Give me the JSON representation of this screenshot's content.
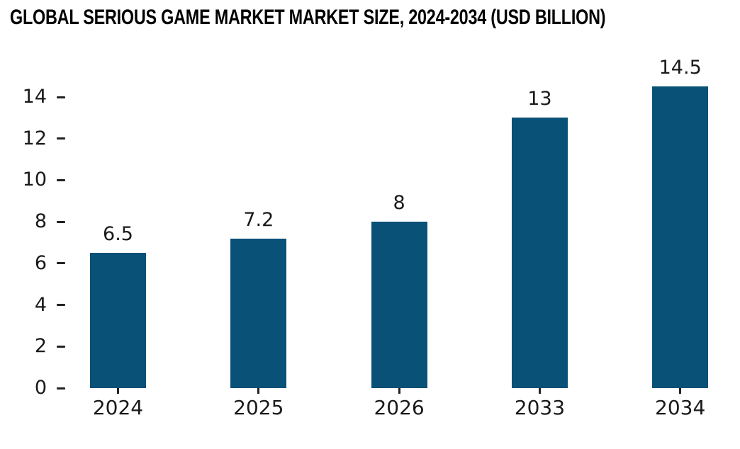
{
  "chart_data": {
    "type": "bar",
    "title": "GLOBAL SERIOUS GAME MARKET MARKET SIZE, 2024-2034 (USD BILLION)",
    "categories": [
      "2024",
      "2025",
      "2026",
      "2033",
      "2034"
    ],
    "values": [
      6.5,
      7.2,
      8,
      13,
      14.5
    ],
    "value_labels": [
      "6.5",
      "7.2",
      "8",
      "13",
      "14.5"
    ],
    "xlabel": "",
    "ylabel": "",
    "yticks": [
      0,
      2,
      4,
      6,
      8,
      10,
      12,
      14
    ],
    "ylim": [
      0,
      14.5
    ],
    "grid": false,
    "legend": null,
    "colors": {
      "bar": "#0A5177",
      "text": "#1a1a1a",
      "tick": "#222222",
      "title": "#000000",
      "background": "#ffffff"
    }
  }
}
